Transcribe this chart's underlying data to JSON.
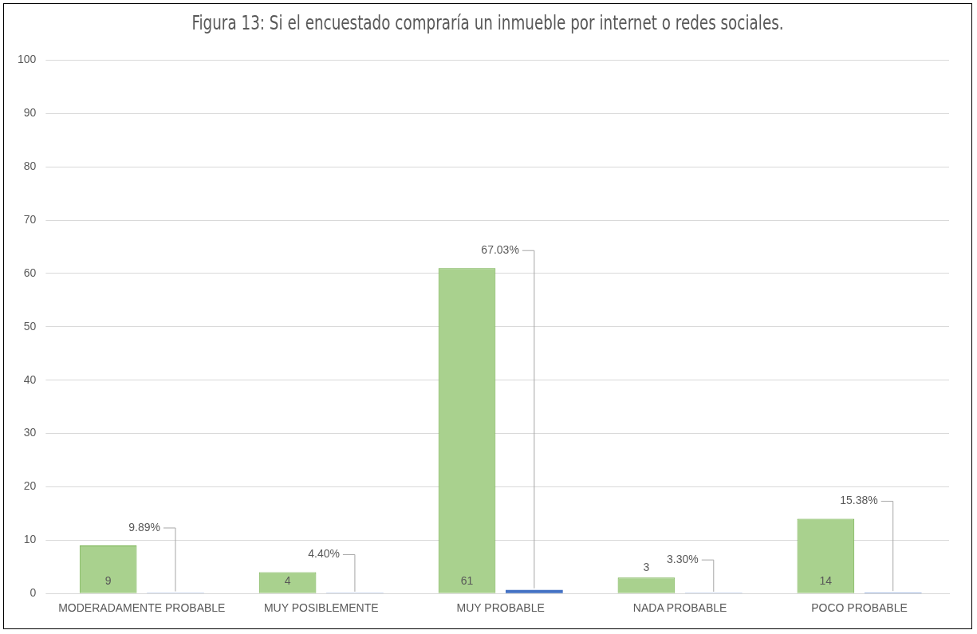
{
  "chart_data": {
    "type": "bar",
    "title": "Figura 13: Si el encuestado compraría un inmueble por internet o redes sociales.",
    "categories": [
      "MODERADAMENTE PROBABLE",
      "MUY POSIBLEMENTE",
      "MUY PROBABLE",
      "NADA PROBABLE",
      "POCO PROBABLE"
    ],
    "series": [
      {
        "color": "#a9d18e",
        "values": [
          9,
          4,
          61,
          3,
          14
        ],
        "value_labels": [
          "9",
          "4",
          "61",
          "3",
          "14"
        ]
      },
      {
        "color": "#4472c4",
        "values": [
          0.0989,
          0.044,
          0.6703,
          0.033,
          0.1538
        ],
        "value_labels": [
          "9.89%",
          "4.40%",
          "67.03%",
          "3.30%",
          "15.38%"
        ]
      }
    ],
    "ylim": [
      0,
      100
    ],
    "yticks": [
      0,
      10,
      20,
      30,
      40,
      50,
      60,
      70,
      80,
      90,
      100
    ],
    "grid": "y",
    "legend": false
  }
}
